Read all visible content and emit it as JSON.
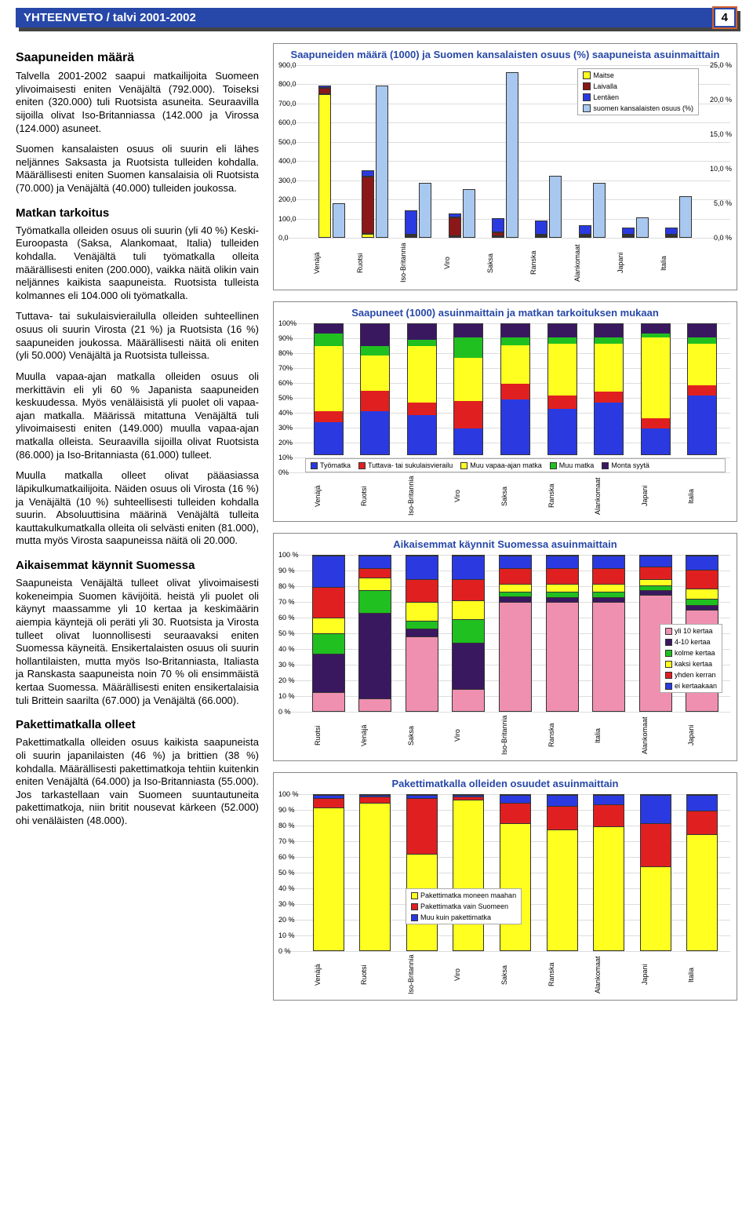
{
  "header": {
    "title": "YHTEENVETO / talvi 2001-2002",
    "page": "4"
  },
  "text": {
    "h1": "Saapuneiden määrä",
    "p1": "Talvella 2001-2002 saapui matkailijoita Suomeen ylivoimaisesti eniten Venäjältä (792.000). Toiseksi eniten (320.000) tuli Ruotsista asuneita. Seuraavilla sijoilla olivat Iso-Britanniassa (142.000 ja Virossa (124.000) asuneet.",
    "p2": "Suomen kansalaisten osuus oli suurin eli lähes neljännes Saksasta ja Ruotsista tulleiden kohdalla. Määrällisesti eniten Suomen kansalaisia oli Ruotsista (70.000) ja Venäjältä (40.000) tulleiden joukossa.",
    "h2": "Matkan tarkoitus",
    "p3": "Työmatkalla olleiden osuus oli suurin (yli 40 %) Keski-Euroopasta (Saksa, Alankomaat, Italia) tulleiden kohdalla. Venäjältä tuli työmatkalla olleita määrällisesti eniten (200.000), vaikka näitä olikin vain neljännes kaikista saapuneista. Ruotsista tulleista kolmannes eli 104.000 oli työmatkalla.",
    "p4": "Tuttava- tai sukulaisvierailulla olleiden suhteellinen osuus oli suurin Virosta (21 %) ja Ruotsista (16 %) saapuneiden joukossa. Määrällisesti näitä oli eniten (yli 50.000) Venäjältä ja Ruotsista tulleissa.",
    "p5": "Muulla vapaa-ajan matkalla olleiden osuus oli merkittävin eli yli 60 % Japanista saapuneiden keskuudessa. Myös venäläisistä yli puolet oli vapaa-ajan matkalla. Määrissä mitattuna Venäjältä tuli ylivoimaisesti eniten (149.000) muulla vapaa-ajan matkalla olleista. Seuraavilla sijoilla olivat Ruotsista (86.000) ja Iso-Britanniasta (61.000) tulleet.",
    "p6": "Muulla matkalla olleet olivat pääasiassa läpikulkumatkailijoita. Näiden osuus oli Virosta (16 %) ja Venäjältä (10 %) suhteellisesti tulleiden kohdalla suurin. Absoluuttisina määrinä Venäjältä tulleita kauttakulkumatkalla olleita oli selvästi eniten (81.000), mutta myös Virosta saapuneissa näitä oli 20.000.",
    "h3": "Aikaisemmat käynnit Suomessa",
    "p7": "Saapuneista Venäjältä tulleet olivat ylivoimaisesti kokeneimpia Suomen kävijöitä. heistä yli puolet oli käynyt maassamme yli 10 kertaa ja keskimäärin aiempia käyntejä oli peräti yli 30. Ruotsista ja Virosta tulleet olivat luonnollisesti seuraavaksi eniten Suomessa käyneitä. Ensikertalaisten osuus oli suurin hollantilaisten, mutta myös Iso-Britanniasta, Italiasta ja Ranskasta saapuneista noin 70 % oli ensimmäistä kertaa Suomessa. Määrällisesti eniten ensikertalaisia tuli Brittein saarilta (67.000) ja Venäjältä (66.000).",
    "h4": "Pakettimatkalla olleet",
    "p8": "Pakettimatkalla olleiden osuus kaikista saapuneista oli suurin japanilaisten (46 %) ja brittien (38 %) kohdalla. Määrällisesti pakettimatkoja tehtiin kuitenkin eniten Venäjältä (64.000) ja Iso-Britanniasta (55.000). Jos tarkastellaan vain Suomeen suuntautuneita pakettimatkoja, niin britit nousevat kärkeen (52.000) ohi venäläisten (48.000)."
  },
  "colors": {
    "blue": "#2a3ae0",
    "red": "#e02020",
    "darkred": "#8a1818",
    "yellow": "#ffff20",
    "green": "#20c020",
    "lightblue": "#a8c8f0",
    "pink": "#f090b0",
    "darkpurple": "#3a1860",
    "white": "#ffffff"
  },
  "chart1": {
    "title": "Saapuneiden määrä (1000) ja Suomen kansalaisten osuus (%) saapuneista asuinmaittain",
    "yleft": [
      0,
      100,
      200,
      300,
      400,
      500,
      600,
      700,
      800,
      900
    ],
    "yright": [
      "0,0 %",
      "5,0 %",
      "10,0 %",
      "15,0 %",
      "20,0 %",
      "25,0 %"
    ],
    "ymax": 900,
    "yrmax": 25,
    "legend": [
      "Maitse",
      "Laivalla",
      "Lentäen",
      "suomen kansalaisten osuus (%)"
    ],
    "legend_colors": [
      "#ffff20",
      "#8a1818",
      "#2a3ae0",
      "#a8c8f0"
    ],
    "cats": [
      "Venäjä",
      "Ruotsi",
      "Iso-Britannia",
      "Viro",
      "Saksa",
      "Ranska",
      "Alankomaat",
      "Japani",
      "Italia"
    ],
    "maitse": [
      750,
      20,
      5,
      5,
      10,
      8,
      5,
      3,
      3
    ],
    "laivalla": [
      30,
      300,
      10,
      100,
      20,
      5,
      5,
      2,
      3
    ],
    "lentaen": [
      12,
      30,
      127,
      19,
      73,
      75,
      50,
      36,
      36
    ],
    "pct": [
      5,
      22,
      8,
      7,
      24,
      9,
      8,
      3,
      6
    ]
  },
  "chart2": {
    "title": "Saapuneet (1000) asuinmaittain ja matkan tarkoituksen mukaan",
    "legend": [
      "Työmatka",
      "Tuttava- tai sukulaisvierailu",
      "Muu vapaa-ajan matka",
      "Muu matka",
      "Monta syytä"
    ],
    "legend_colors": [
      "#2a3ae0",
      "#e02020",
      "#ffff20",
      "#20c020",
      "#3a1860"
    ],
    "cats": [
      "Venäjä",
      "Ruotsi",
      "Iso-Britannia",
      "Viro",
      "Saksa",
      "Ranska",
      "Alankomaat",
      "Japani",
      "Italia"
    ],
    "rows": [
      [
        25,
        8,
        50,
        10,
        7
      ],
      [
        33,
        16,
        27,
        7,
        17
      ],
      [
        30,
        10,
        43,
        5,
        12
      ],
      [
        20,
        21,
        33,
        16,
        10
      ],
      [
        42,
        12,
        30,
        6,
        10
      ],
      [
        35,
        10,
        40,
        5,
        10
      ],
      [
        40,
        8,
        37,
        5,
        10
      ],
      [
        20,
        8,
        62,
        3,
        7
      ],
      [
        45,
        8,
        32,
        5,
        10
      ]
    ]
  },
  "chart3": {
    "title": "Aikaisemmat käynnit Suomessa asuinmaittain",
    "legend": [
      "yli 10 kertaa",
      "4-10 kertaa",
      "kolme kertaa",
      "kaksi kertaa",
      "yhden kerran",
      "ei kertaakaan"
    ],
    "legend_colors": [
      "#f090b0",
      "#3a1860",
      "#20c020",
      "#ffff20",
      "#e02020",
      "#2a3ae0"
    ],
    "cats": [
      "Ruotsi",
      "Venäjä",
      "Saksa",
      "Viro",
      "Iso-Britannia",
      "Ranska",
      "Italia",
      "Alankomaat",
      "Japani"
    ],
    "rows": [
      [
        12,
        25,
        13,
        10,
        20,
        20
      ],
      [
        8,
        55,
        15,
        8,
        6,
        8
      ],
      [
        48,
        5,
        5,
        12,
        15,
        15
      ],
      [
        14,
        30,
        15,
        12,
        14,
        15
      ],
      [
        70,
        4,
        3,
        5,
        10,
        8
      ],
      [
        70,
        3,
        4,
        5,
        10,
        8
      ],
      [
        70,
        3,
        4,
        5,
        10,
        8
      ],
      [
        75,
        3,
        3,
        4,
        8,
        7
      ],
      [
        65,
        3,
        4,
        7,
        12,
        9
      ]
    ]
  },
  "chart4": {
    "title": "Pakettimatkalla olleiden osuudet asuinmaittain",
    "legend": [
      "Pakettimatka moneen maahan",
      "Pakettimatka vain Suomeen",
      "Muu kuin pakettimatka"
    ],
    "legend_colors": [
      "#ffff20",
      "#e02020",
      "#2a3ae0"
    ],
    "cats": [
      "Venäjä",
      "Ruotsi",
      "Iso-Britannia",
      "Viro",
      "Saksa",
      "Ranska",
      "Alankomaat",
      "Japani",
      "Italia"
    ],
    "rows": [
      [
        92,
        6,
        2
      ],
      [
        95,
        4,
        1
      ],
      [
        62,
        36,
        2
      ],
      [
        97,
        2,
        1
      ],
      [
        82,
        13,
        5
      ],
      [
        78,
        15,
        7
      ],
      [
        80,
        14,
        6
      ],
      [
        54,
        28,
        18
      ],
      [
        75,
        15,
        10
      ]
    ]
  }
}
